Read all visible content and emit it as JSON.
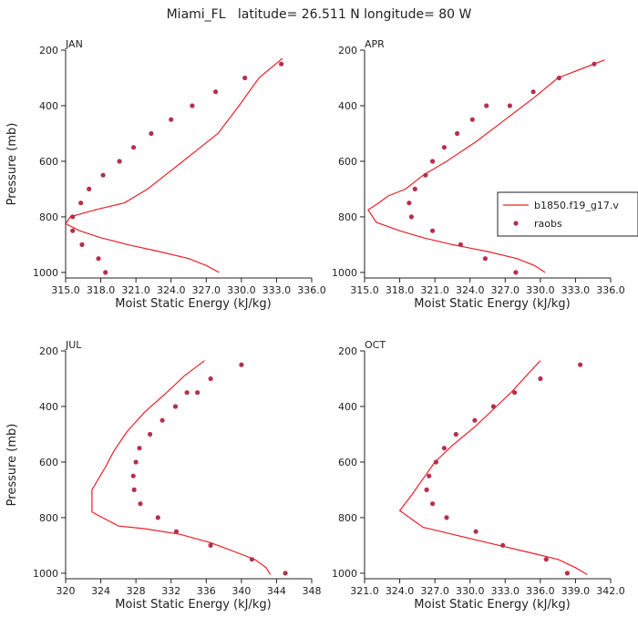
{
  "figure_title": "Miami_FL   latitude= 26.511 N longitude= 80 W",
  "chart_data": [
    {
      "type": "line",
      "title": "JAN",
      "xlabel": "Moist Static Energy (kJ/kg)",
      "ylabel": "Pressure (mb)",
      "xlim": [
        315.0,
        336.0
      ],
      "ylim": [
        1020,
        200
      ],
      "xticks": [
        "315.0",
        "318.0",
        "321.0",
        "324.0",
        "327.0",
        "330.0",
        "333.0",
        "336.0"
      ],
      "xtick_values": [
        315.0,
        318.0,
        321.0,
        324.0,
        327.0,
        330.0,
        333.0,
        336.0
      ],
      "yticks": [
        200,
        400,
        600,
        800,
        1000
      ],
      "series": [
        {
          "name": "b1850.f19_g17.v",
          "style": "line",
          "x": [
            328.1,
            327.0,
            325.5,
            323.0,
            320.3,
            318.0,
            316.2,
            315.0,
            315.4,
            317.5,
            320.0,
            322.0,
            323.5,
            325.0,
            326.5,
            328.0,
            329.8,
            331.5,
            333.5
          ],
          "y": [
            1000,
            975,
            950,
            925,
            900,
            875,
            850,
            825,
            800,
            775,
            750,
            700,
            650,
            600,
            550,
            500,
            400,
            300,
            230
          ]
        },
        {
          "name": "raobs",
          "style": "dot",
          "x": [
            318.4,
            317.8,
            316.4,
            315.6,
            315.6,
            316.3,
            317.0,
            318.2,
            319.6,
            320.8,
            322.3,
            324.0,
            325.8,
            327.8,
            330.3,
            333.4
          ],
          "y": [
            1000,
            950,
            900,
            850,
            800,
            750,
            700,
            650,
            600,
            550,
            500,
            450,
            400,
            350,
            300,
            250
          ]
        }
      ]
    },
    {
      "type": "line",
      "title": "APR",
      "xlabel": "Moist Static Energy (kJ/kg)",
      "ylabel": "",
      "xlim": [
        315.0,
        336.0
      ],
      "ylim": [
        1020,
        200
      ],
      "xticks": [
        "315.0",
        "318.0",
        "321.0",
        "324.0",
        "327.0",
        "330.0",
        "333.0",
        "336.0"
      ],
      "xtick_values": [
        315.0,
        318.0,
        321.0,
        324.0,
        327.0,
        330.0,
        333.0,
        336.0
      ],
      "yticks": [
        200,
        400,
        600,
        800,
        1000
      ],
      "legend": {
        "entries": [
          "b1850.f19_g17.v",
          "raobs"
        ],
        "placement": "right"
      },
      "series": [
        {
          "name": "b1850.f19_g17.v",
          "style": "line",
          "x": [
            330.4,
            329.5,
            328.0,
            325.5,
            322.5,
            320.0,
            318.0,
            316.0,
            315.3,
            316.2,
            317.0,
            318.5,
            320.0,
            322.0,
            324.5,
            327.0,
            329.5,
            331.5,
            335.5
          ],
          "y": [
            1000,
            975,
            950,
            925,
            900,
            875,
            850,
            820,
            775,
            750,
            725,
            700,
            650,
            600,
            530,
            450,
            370,
            300,
            235
          ]
        },
        {
          "name": "raobs",
          "style": "dot",
          "x": [
            327.9,
            325.3,
            323.2,
            320.8,
            319.0,
            318.8,
            319.3,
            320.2,
            320.8,
            321.8,
            322.9,
            324.2,
            325.4,
            327.4,
            329.4,
            331.6,
            334.6
          ],
          "y": [
            1000,
            950,
            900,
            850,
            800,
            750,
            700,
            650,
            600,
            550,
            500,
            450,
            400,
            400,
            350,
            300,
            250
          ]
        }
      ]
    },
    {
      "type": "line",
      "title": "JUL",
      "xlabel": "Moist Static Energy (kJ/kg)",
      "ylabel": "Pressure (mb)",
      "xlim": [
        320,
        348
      ],
      "ylim": [
        1020,
        200
      ],
      "xticks": [
        "320",
        "324",
        "328",
        "332",
        "336",
        "340",
        "344",
        "348"
      ],
      "xtick_values": [
        320,
        324,
        328,
        332,
        336,
        340,
        344,
        348
      ],
      "yticks": [
        200,
        400,
        600,
        800,
        1000
      ],
      "series": [
        {
          "name": "b1850.f19_g17.v",
          "style": "line",
          "x": [
            343.3,
            342.8,
            341.5,
            339.0,
            336.5,
            333.0,
            329.0,
            326.0,
            323.0,
            323.0,
            324.5,
            325.5,
            327.0,
            329.0,
            331.5,
            333.5,
            335.8
          ],
          "y": [
            1005,
            980,
            950,
            920,
            890,
            860,
            840,
            830,
            780,
            700,
            620,
            560,
            490,
            420,
            350,
            290,
            235
          ]
        },
        {
          "name": "raobs",
          "style": "dot",
          "x": [
            345.0,
            341.2,
            336.5,
            332.6,
            330.5,
            328.5,
            327.8,
            327.7,
            328.0,
            328.4,
            329.6,
            331.0,
            332.5,
            333.8,
            335.0,
            336.5,
            340.0
          ],
          "y": [
            1000,
            950,
            900,
            850,
            800,
            750,
            700,
            650,
            600,
            550,
            500,
            450,
            400,
            350,
            350,
            300,
            250
          ]
        }
      ]
    },
    {
      "type": "line",
      "title": "OCT",
      "xlabel": "Moist Static Energy (kJ/kg)",
      "ylabel": "",
      "xlim": [
        321.0,
        342.0
      ],
      "ylim": [
        1020,
        200
      ],
      "xticks": [
        "321.0",
        "324.0",
        "327.0",
        "330.0",
        "333.0",
        "336.0",
        "339.0",
        "342.0"
      ],
      "xtick_values": [
        321.0,
        324.0,
        327.0,
        330.0,
        333.0,
        336.0,
        339.0,
        342.0
      ],
      "yticks": [
        200,
        400,
        600,
        800,
        1000
      ],
      "series": [
        {
          "name": "b1850.f19_g17.v",
          "style": "line",
          "x": [
            340.0,
            339.0,
            337.5,
            334.5,
            331.5,
            328.5,
            326.0,
            324.0,
            325.0,
            326.0,
            327.0,
            328.5,
            330.5,
            332.0,
            333.5,
            334.8,
            336.0
          ],
          "y": [
            1005,
            980,
            950,
            920,
            890,
            860,
            835,
            775,
            720,
            660,
            600,
            540,
            470,
            410,
            350,
            290,
            235
          ]
        },
        {
          "name": "raobs",
          "style": "dot",
          "x": [
            338.3,
            336.5,
            332.8,
            330.5,
            328.0,
            326.8,
            326.3,
            326.5,
            327.1,
            327.8,
            328.8,
            330.4,
            332.0,
            333.8,
            336.0,
            339.4
          ],
          "y": [
            1000,
            950,
            900,
            850,
            800,
            750,
            700,
            650,
            600,
            550,
            500,
            450,
            400,
            350,
            300,
            250
          ]
        }
      ]
    }
  ],
  "colors": {
    "model_line": "#e8202a",
    "obs_dots": "#b5304e",
    "axis": "#222222"
  }
}
